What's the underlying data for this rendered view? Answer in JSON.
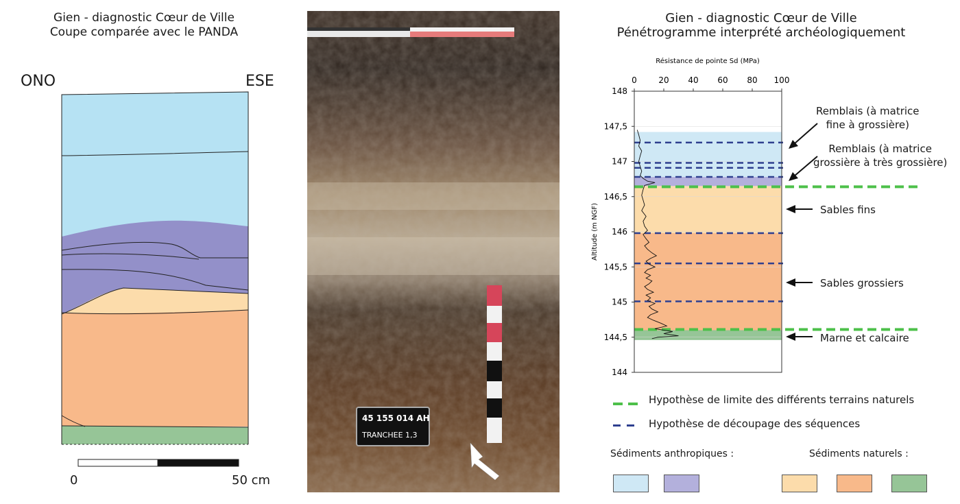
{
  "left_panel": {
    "title_line1": "Gien - diagnostic Cœur de Ville",
    "title_line2": "Coupe comparée avec le PANDA",
    "orientation_left": "ONO",
    "orientation_right": "ESE",
    "scale_start": "0",
    "scale_end": "50 cm"
  },
  "photo": {
    "board_line1": "45 155 014 AH",
    "board_line2": "TRANCHEE 1,3"
  },
  "right_panel": {
    "title_line1": "Gien - diagnostic Cœur de Ville",
    "title_line2": "Pénétrogramme interprété archéologiquement"
  },
  "chart_data": {
    "type": "line",
    "xlabel": "Résistance de pointe Sd (MPa)",
    "ylabel": "Altitude (m NGF)",
    "xlim": [
      0,
      100
    ],
    "ylim": [
      144,
      148
    ],
    "x_ticks": [
      "0",
      "20",
      "40",
      "60",
      "80",
      "100"
    ],
    "y_ticks": [
      "148",
      "147,5",
      "147",
      "146,5",
      "146",
      "145,5",
      "145",
      "144,5",
      "144"
    ],
    "layers": [
      {
        "top": 147.42,
        "bottom": 146.78,
        "color": "#cfe8f5"
      },
      {
        "top": 146.78,
        "bottom": 146.65,
        "color": "#b3b0dc"
      },
      {
        "top": 146.65,
        "bottom": 145.98,
        "color": "#fcdcab"
      },
      {
        "top": 145.98,
        "bottom": 144.6,
        "color": "#f8b98a"
      },
      {
        "top": 144.6,
        "bottom": 144.46,
        "color": "#96c597"
      }
    ],
    "sequence_lines": [
      147.27,
      146.98,
      146.91,
      146.78,
      145.98,
      145.55,
      145.01
    ],
    "natural_limit_lines": [
      146.64,
      144.61
    ],
    "series": [
      {
        "x": [
          2,
          3,
          4,
          3,
          5,
          4,
          3,
          4,
          5,
          4,
          6,
          9,
          14,
          7,
          6,
          5,
          6,
          7,
          5,
          8,
          6,
          7,
          9,
          6,
          8,
          10,
          7,
          9,
          12,
          15,
          11,
          8,
          10,
          14,
          9,
          7,
          11,
          8,
          12,
          10,
          7,
          9,
          13,
          8,
          11,
          9,
          14,
          10,
          12,
          16,
          11,
          9,
          13,
          18,
          22,
          14,
          26,
          20,
          30,
          16,
          12
        ],
        "y": [
          147.45,
          147.38,
          147.3,
          147.22,
          147.15,
          147.08,
          147.0,
          146.93,
          146.86,
          146.8,
          146.76,
          146.72,
          146.7,
          146.66,
          146.6,
          146.52,
          146.45,
          146.38,
          146.3,
          146.22,
          146.15,
          146.08,
          146.02,
          145.96,
          145.9,
          145.85,
          145.8,
          145.75,
          145.7,
          145.66,
          145.62,
          145.58,
          145.54,
          145.5,
          145.46,
          145.42,
          145.38,
          145.34,
          145.3,
          145.26,
          145.22,
          145.18,
          145.14,
          145.1,
          145.06,
          145.02,
          144.98,
          144.94,
          144.9,
          144.86,
          144.82,
          144.78,
          144.74,
          144.7,
          144.66,
          144.62,
          144.58,
          144.55,
          144.52,
          144.5,
          144.48
        ]
      }
    ]
  },
  "annotations": {
    "remblais_fine": [
      "Remblais (à matrice",
      "fine à grossière)"
    ],
    "remblais_grossiere": [
      "Remblais (à matrice",
      "grossière à très grossière)"
    ],
    "sables_fins": "Sables fins",
    "sables_grossiers": "Sables grossiers",
    "marne": "Marne et calcaire"
  },
  "legend": {
    "natural_limit": "Hypothèse de limite des différents terrains naturels",
    "sequence": "Hypothèse de découpage des séquences",
    "anthropic_label": "Sédiments anthropiques :",
    "natural_label": "Sédiments naturels :"
  },
  "colors": {
    "light_blue": "#b6e2f3",
    "purple": "#9390c9",
    "light_orange": "#fcdcab",
    "orange": "#f8b98a",
    "green": "#96c597",
    "seq_line": "#2e3f8f",
    "limit_line": "#4dc04a"
  }
}
